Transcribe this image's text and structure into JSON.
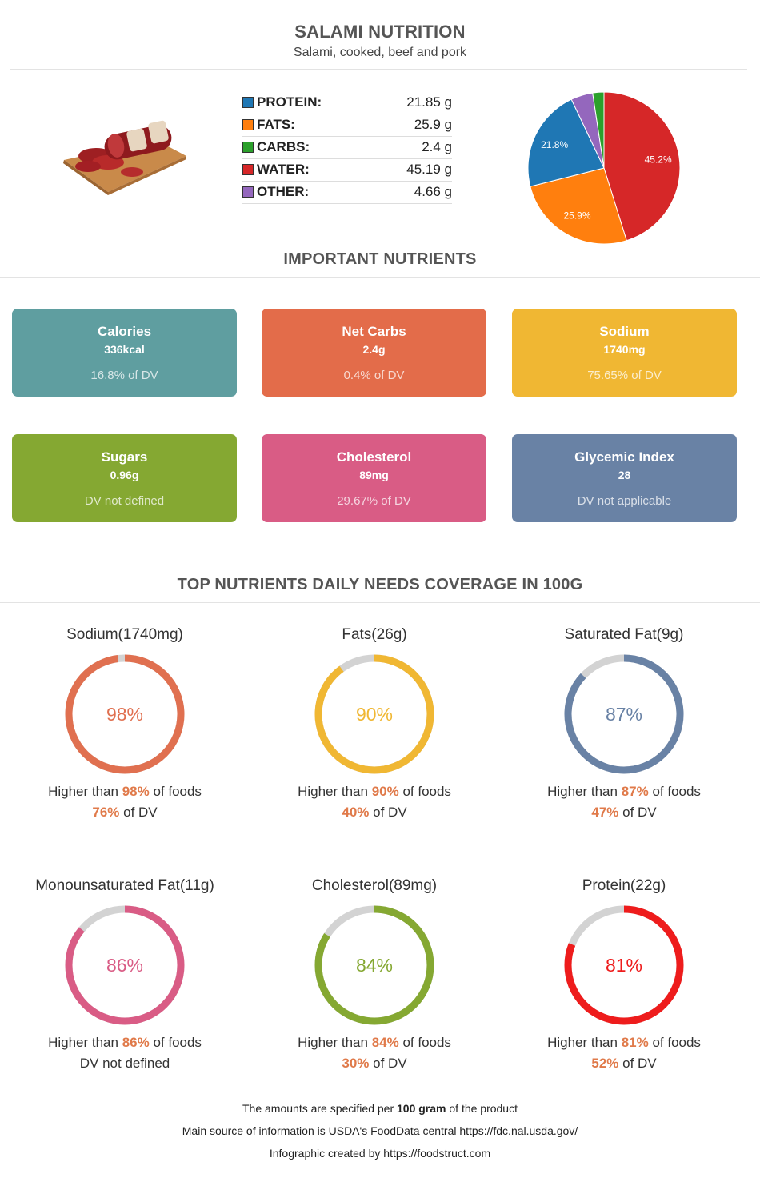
{
  "header": {
    "title": "SALAMI NUTRITION",
    "subtitle": "Salami, cooked, beef and pork"
  },
  "macros": [
    {
      "label": "PROTEIN:",
      "value": "21.85 g",
      "color": "#1f77b4"
    },
    {
      "label": "FATS:",
      "value": "25.9 g",
      "color": "#ff7f0e"
    },
    {
      "label": "CARBS:",
      "value": "2.4 g",
      "color": "#2ca02c"
    },
    {
      "label": "WATER:",
      "value": "45.19 g",
      "color": "#d62728"
    },
    {
      "label": "OTHER:",
      "value": "4.66 g",
      "color": "#9467bd"
    }
  ],
  "chart_data": {
    "type": "pie",
    "series": [
      {
        "name": "Water",
        "value": 45.19,
        "label": "45.2%",
        "color": "#d62728"
      },
      {
        "name": "Fats",
        "value": 25.9,
        "label": "25.9%",
        "color": "#ff7f0e"
      },
      {
        "name": "Protein",
        "value": 21.85,
        "label": "21.8%",
        "color": "#1f77b4"
      },
      {
        "name": "Other",
        "value": 4.66,
        "label": "",
        "color": "#9467bd"
      },
      {
        "name": "Carbs",
        "value": 2.4,
        "label": "",
        "color": "#2ca02c"
      }
    ]
  },
  "important": {
    "title": "IMPORTANT NUTRIENTS",
    "cards": [
      {
        "name": "Calories",
        "value": "336kcal",
        "dv": "16.8% of DV",
        "color": "#5f9ea0"
      },
      {
        "name": "Net Carbs",
        "value": "2.4g",
        "dv": "0.4% of DV",
        "color": "#e36c4a"
      },
      {
        "name": "Sodium",
        "value": "1740mg",
        "dv": "75.65% of DV",
        "color": "#f0b733"
      },
      {
        "name": "Sugars",
        "value": "0.96g",
        "dv": "DV not defined",
        "color": "#85a832"
      },
      {
        "name": "Cholesterol",
        "value": "89mg",
        "dv": "29.67% of DV",
        "color": "#d95c85"
      },
      {
        "name": "Glycemic Index",
        "value": "28",
        "dv": "DV not applicable",
        "color": "#6982a5"
      }
    ]
  },
  "coverage": {
    "title": "TOP NUTRIENTS DAILY NEEDS COVERAGE IN 100G",
    "higher_prefix": "Higher than ",
    "higher_suffix": " of foods",
    "dv_suffix": " of DV",
    "items": [
      {
        "name": "Sodium(1740mg)",
        "percent": 98,
        "percent_label": "98%",
        "dv": "76%",
        "dv_text": "",
        "color": "#e07050"
      },
      {
        "name": "Fats(26g)",
        "percent": 90,
        "percent_label": "90%",
        "dv": "40%",
        "dv_text": "",
        "color": "#f0b733"
      },
      {
        "name": "Saturated Fat(9g)",
        "percent": 87,
        "percent_label": "87%",
        "dv": "47%",
        "dv_text": "",
        "color": "#6982a5"
      },
      {
        "name": "Monounsaturated Fat(11g)",
        "percent": 86,
        "percent_label": "86%",
        "dv": "",
        "dv_text": "DV not defined",
        "color": "#d95c85"
      },
      {
        "name": "Cholesterol(89mg)",
        "percent": 84,
        "percent_label": "84%",
        "dv": "30%",
        "dv_text": "",
        "color": "#85a832"
      },
      {
        "name": "Protein(22g)",
        "percent": 81,
        "percent_label": "81%",
        "dv": "52%",
        "dv_text": "",
        "color": "#ee1c1c"
      }
    ]
  },
  "footer": {
    "line1_pre": "The amounts are specified per ",
    "line1_bold": "100 gram",
    "line1_post": " of the product",
    "line2": "Main source of information is USDA's FoodData central https://fdc.nal.usda.gov/",
    "line3": "Infographic created by https://foodstruct.com"
  }
}
